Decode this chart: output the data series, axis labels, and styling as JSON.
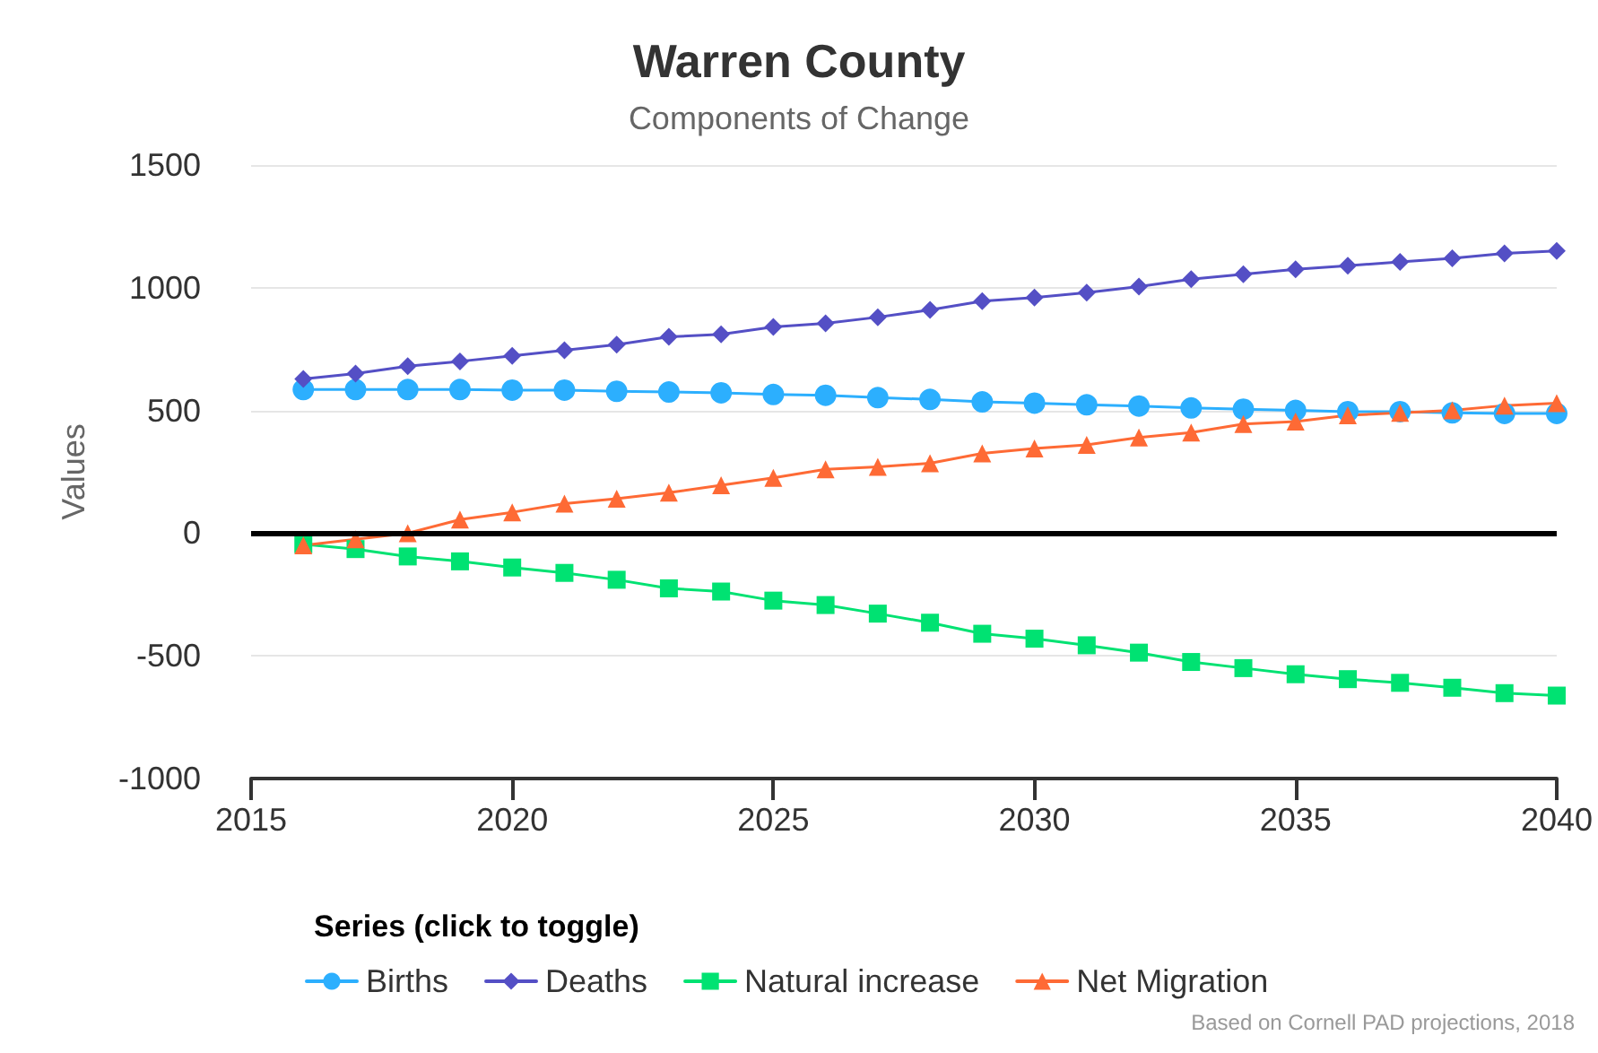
{
  "chart_data": {
    "type": "line",
    "title": "Warren County",
    "subtitle": "Components of Change",
    "ylabel": "Values",
    "legend_title": "Series (click to toggle)",
    "annotations": [
      "Based on Cornell PAD projections, 2018"
    ],
    "x": [
      2016,
      2017,
      2018,
      2019,
      2020,
      2021,
      2022,
      2023,
      2024,
      2025,
      2026,
      2027,
      2028,
      2029,
      2030,
      2031,
      2032,
      2033,
      2034,
      2035,
      2036,
      2037,
      2038,
      2039,
      2040
    ],
    "series": [
      {
        "name": "Births",
        "color": "#2caffe",
        "marker": "circle",
        "values": [
          585,
          585,
          585,
          585,
          583,
          583,
          578,
          575,
          572,
          565,
          562,
          552,
          545,
          535,
          530,
          523,
          518,
          510,
          505,
          500,
          495,
          495,
          490,
          488,
          488
        ]
      },
      {
        "name": "Deaths",
        "color": "#544fc5",
        "marker": "diamond",
        "values": [
          628,
          650,
          680,
          700,
          722,
          745,
          768,
          800,
          810,
          840,
          855,
          880,
          910,
          945,
          960,
          980,
          1005,
          1035,
          1055,
          1075,
          1090,
          1105,
          1120,
          1140,
          1150
        ]
      },
      {
        "name": "Natural increase",
        "color": "#00e272",
        "marker": "square",
        "values": [
          -45,
          -65,
          -95,
          -115,
          -140,
          -162,
          -190,
          -225,
          -238,
          -275,
          -293,
          -328,
          -365,
          -410,
          -430,
          -457,
          -487,
          -525,
          -550,
          -575,
          -595,
          -610,
          -630,
          -652,
          -662
        ]
      },
      {
        "name": "Net Migration",
        "color": "#fe6a35",
        "marker": "triangle",
        "values": [
          -50,
          -25,
          0,
          55,
          85,
          120,
          140,
          165,
          195,
          225,
          260,
          270,
          285,
          325,
          345,
          360,
          390,
          410,
          445,
          455,
          480,
          490,
          500,
          520,
          530
        ]
      }
    ],
    "xlim": [
      2015,
      2040
    ],
    "xticks": [
      2015,
      2020,
      2025,
      2030,
      2035,
      2040
    ],
    "ylim": [
      -1000,
      1500
    ],
    "yticks": [
      -1000,
      -500,
      0,
      500,
      1000,
      1500
    ],
    "ref_lines": [
      {
        "axis": "y",
        "value": 0,
        "color": "#000000"
      }
    ],
    "grid": "y",
    "legend": "bottom"
  }
}
